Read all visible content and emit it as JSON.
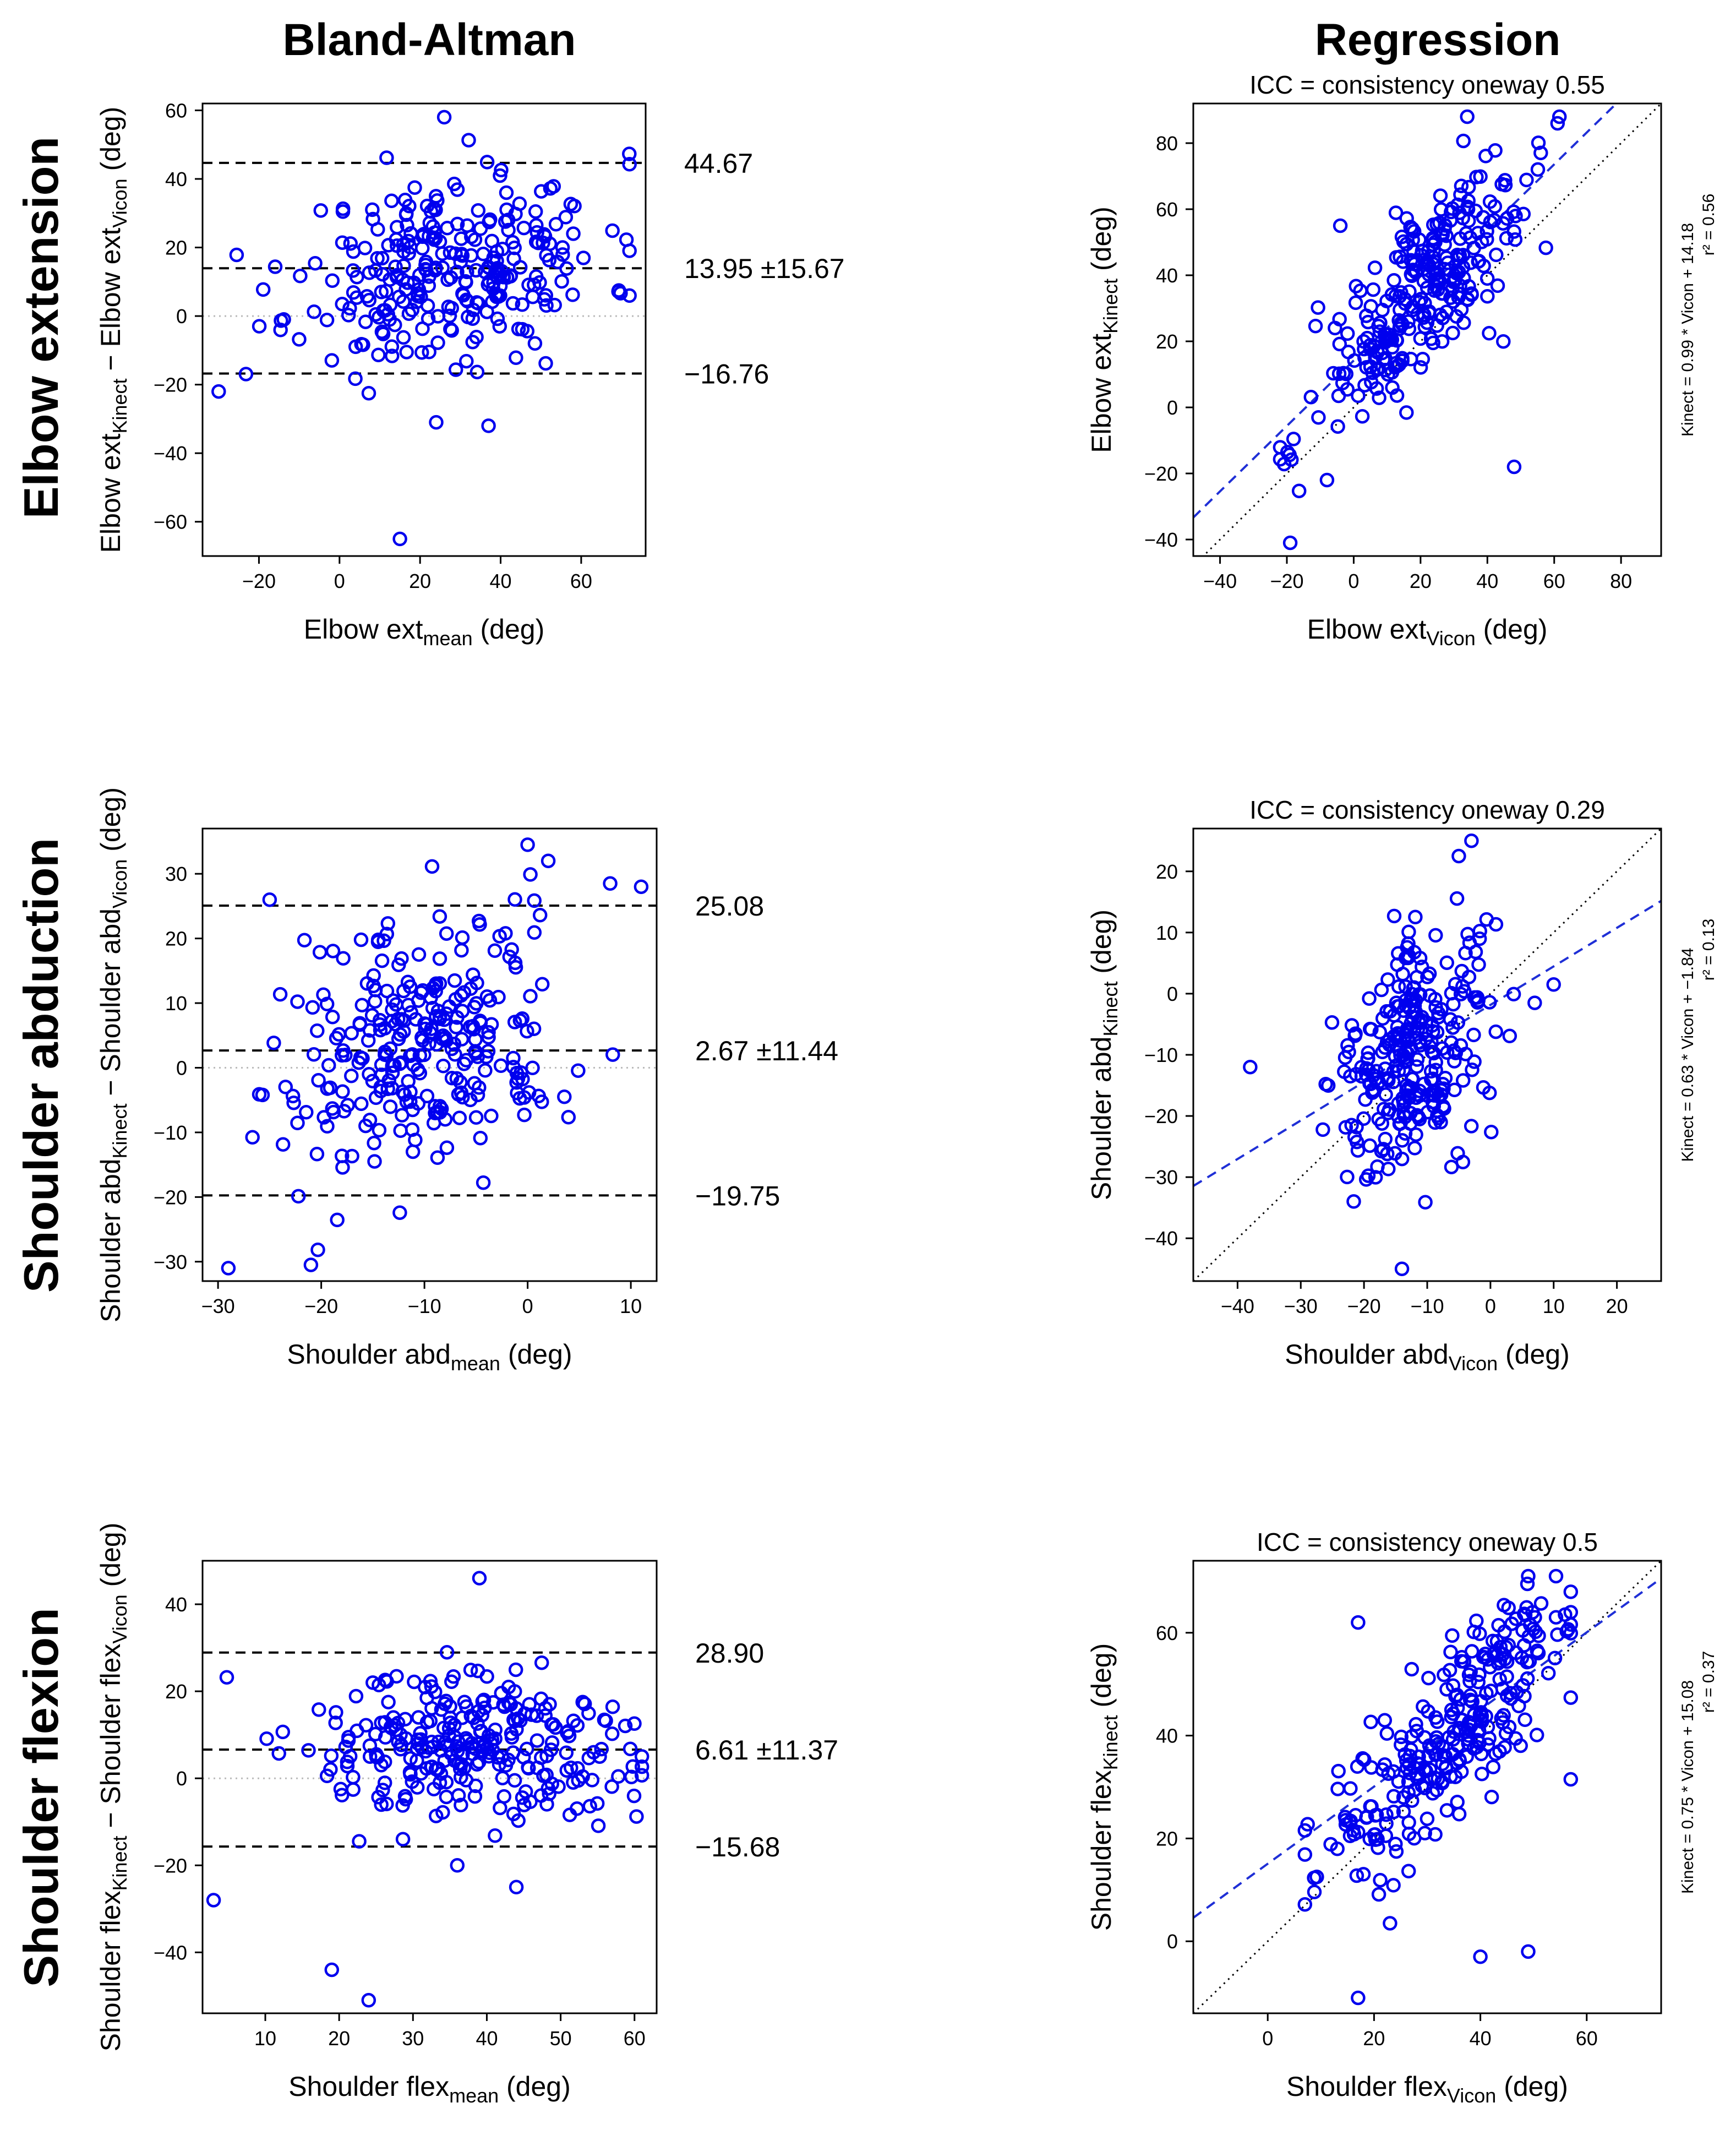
{
  "column_titles": {
    "left": "Bland-Altman",
    "right": "Regression"
  },
  "row_titles": [
    "Elbow extension",
    "Shoulder abduction",
    "Shoulder flexion"
  ],
  "colors": {
    "points": "#0000ee",
    "limits": "#000000",
    "fit_line": "#1f2fd6",
    "identity": "#000000",
    "zero_line": "#bbbbbb"
  },
  "chart_data": [
    {
      "type": "scatter",
      "kind": "bland-altman",
      "name": "elbow-ba",
      "xlabel": {
        "base": "Elbow ext",
        "sub": "mean",
        "unit": " (deg)"
      },
      "ylabel": {
        "pre": "Elbow ext",
        "sub1": "Kinect",
        "mid": " − Elbow ext",
        "sub2": "Vicon",
        "unit": " (deg)"
      },
      "xlim": [
        -34,
        76
      ],
      "ylim": [
        -70,
        62
      ],
      "xticks": [
        -20,
        0,
        20,
        40,
        60
      ],
      "yticks": [
        -60,
        -40,
        -20,
        0,
        20,
        40,
        60
      ],
      "lines": [
        {
          "y": 44.67,
          "label": "44.67"
        },
        {
          "y": 13.95,
          "label": "13.95 ±15.67"
        },
        {
          "y": -16.76,
          "label": "−16.76"
        }
      ],
      "n": 280,
      "seed": 11,
      "gen": {
        "xmean": 28,
        "xsd": 19,
        "xmin": -30,
        "xmax": 72,
        "slope": 0.15,
        "intercept": 9.7,
        "sd": 13.5,
        "ymin": -66,
        "ymax": 58
      },
      "extra_points": [
        [
          -30,
          -22
        ],
        [
          26,
          58
        ],
        [
          15,
          -65
        ],
        [
          37,
          -32
        ],
        [
          24,
          -31
        ]
      ]
    },
    {
      "type": "scatter",
      "kind": "regression",
      "name": "elbow-reg",
      "icc": "ICC = consistency oneway 0.55",
      "eq": "Kinect = 0.99 * Vicon + 14.18",
      "r2": "r² = 0.56",
      "xlabel": {
        "base": "Elbow ext",
        "sub": "Vicon",
        "unit": " (deg)"
      },
      "ylabel": {
        "base": "Elbow ext",
        "sub": "Kinect",
        "unit": " (deg)"
      },
      "xlim": [
        -48,
        92
      ],
      "ylim": [
        -45,
        92
      ],
      "xticks": [
        -40,
        -20,
        0,
        20,
        40,
        60,
        80
      ],
      "yticks": [
        -40,
        -20,
        0,
        20,
        40,
        60,
        80
      ],
      "fit": {
        "slope": 0.99,
        "intercept": 14.18
      },
      "n": 280,
      "seed": 21,
      "gen": {
        "xmean": 22,
        "xsd": 16,
        "xmin": -22,
        "xmax": 62,
        "slope": 0.99,
        "intercept": 14.18,
        "sd": 12.5,
        "ymin": -42,
        "ymax": 88
      },
      "extra_points": [
        [
          -19,
          -41
        ],
        [
          -8,
          -22
        ],
        [
          48,
          -18
        ],
        [
          61,
          86
        ],
        [
          -4,
          55
        ]
      ]
    },
    {
      "type": "scatter",
      "kind": "bland-altman",
      "name": "shoulder-abd-ba",
      "xlabel": {
        "base": "Shoulder abd",
        "sub": "mean",
        "unit": " (deg)"
      },
      "ylabel": {
        "pre": "Shoulder abd",
        "sub1": "Kinect",
        "mid": " − Shoulder abd",
        "sub2": "Vicon",
        "unit": " (deg)"
      },
      "xlim": [
        -31.5,
        12.5
      ],
      "ylim": [
        -33,
        37
      ],
      "xticks": [
        -30,
        -20,
        -10,
        0,
        10
      ],
      "yticks": [
        -30,
        -20,
        -10,
        0,
        10,
        20,
        30
      ],
      "lines": [
        {
          "y": 25.08,
          "label": "25.08"
        },
        {
          "y": 2.67,
          "label": "2.67 ±11.44"
        },
        {
          "y": -19.75,
          "label": "−19.75"
        }
      ],
      "n": 280,
      "seed": 31,
      "gen": {
        "xmean": -11,
        "xsd": 7,
        "xmin": -29,
        "xmax": 11,
        "slope": 0.35,
        "intercept": 6.5,
        "sd": 9.5,
        "ymin": -31,
        "ymax": 34
      },
      "extra_points": [
        [
          -29,
          -31
        ],
        [
          -21,
          -30.5
        ],
        [
          -25,
          26
        ],
        [
          0,
          34.5
        ],
        [
          11,
          28
        ],
        [
          8,
          28.5
        ],
        [
          2,
          32
        ]
      ]
    },
    {
      "type": "scatter",
      "kind": "regression",
      "name": "shoulder-abd-reg",
      "icc": "ICC = consistency oneway 0.29",
      "eq": "Kinect = 0.63 * Vicon + −1.84",
      "r2": "r² = 0.13",
      "xlabel": {
        "base": "Shoulder abd",
        "sub": "Vicon",
        "unit": " (deg)"
      },
      "ylabel": {
        "base": "Shoulder abd",
        "sub": "Kinect",
        "unit": " (deg)"
      },
      "xlim": [
        -47,
        27
      ],
      "ylim": [
        -47,
        27
      ],
      "xticks": [
        -40,
        -30,
        -20,
        -10,
        0,
        10,
        20
      ],
      "yticks": [
        -40,
        -30,
        -20,
        -10,
        0,
        10,
        20
      ],
      "fit": {
        "slope": 0.63,
        "intercept": -1.84
      },
      "n": 280,
      "seed": 41,
      "gen": {
        "xmean": -12,
        "xsd": 6,
        "xmin": -32,
        "xmax": 10,
        "slope": 0.63,
        "intercept": -1.84,
        "sd": 9,
        "ymin": -45,
        "ymax": 25
      },
      "extra_points": [
        [
          -38,
          -12
        ],
        [
          -14,
          -45
        ],
        [
          -3,
          25
        ],
        [
          -5,
          22.5
        ],
        [
          10,
          1.5
        ],
        [
          7,
          -1.5
        ]
      ]
    },
    {
      "type": "scatter",
      "kind": "bland-altman",
      "name": "shoulder-flex-ba",
      "xlabel": {
        "base": "Shoulder flex",
        "sub": "mean",
        "unit": " (deg)"
      },
      "ylabel": {
        "pre": "Shoulder flex",
        "sub1": "Kinect",
        "mid": " − Shoulder flex",
        "sub2": "Vicon",
        "unit": " (deg)"
      },
      "xlim": [
        1.5,
        63
      ],
      "ylim": [
        -54,
        50
      ],
      "xticks": [
        10,
        20,
        30,
        40,
        50,
        60
      ],
      "yticks": [
        -40,
        -20,
        0,
        20,
        40
      ],
      "lines": [
        {
          "y": 28.9,
          "label": "28.90"
        },
        {
          "y": 6.61,
          "label": "6.61 ±11.37"
        },
        {
          "y": -15.68,
          "label": "−15.68"
        }
      ],
      "n": 280,
      "seed": 51,
      "gen": {
        "xmean": 38,
        "xsd": 11,
        "xmin": 3,
        "xmax": 61,
        "slope": 0.0,
        "intercept": 6.6,
        "sd": 8.5,
        "ymin": -52,
        "ymax": 46
      },
      "extra_points": [
        [
          3,
          -28
        ],
        [
          19,
          -44
        ],
        [
          24,
          -51
        ],
        [
          39,
          46
        ],
        [
          36,
          -20
        ],
        [
          44,
          -25
        ]
      ]
    },
    {
      "type": "scatter",
      "kind": "regression",
      "name": "shoulder-flex-reg",
      "icc": "ICC = consistency oneway 0.5",
      "eq": "Kinect = 0.75 * Vicon + 15.08",
      "r2": "r² = 0.37",
      "xlabel": {
        "base": "Shoulder flex",
        "sub": "Vicon",
        "unit": " (deg)"
      },
      "ylabel": {
        "base": "Shoulder flex",
        "sub": "Kinect",
        "unit": " (deg)"
      },
      "xlim": [
        -14,
        74
      ],
      "ylim": [
        -14,
        74
      ],
      "xticks": [
        0,
        20,
        40,
        60
      ],
      "yticks": [
        0,
        20,
        40,
        60
      ],
      "fit": {
        "slope": 0.75,
        "intercept": 15.08
      },
      "n": 280,
      "seed": 61,
      "gen": {
        "xmean": 34,
        "xsd": 12,
        "xmin": 7,
        "xmax": 57,
        "slope": 1.0,
        "intercept": 6,
        "sd": 8,
        "ymin": -11,
        "ymax": 71
      },
      "extra_points": [
        [
          17,
          -11
        ],
        [
          17,
          62
        ],
        [
          40,
          -3
        ],
        [
          49,
          -2
        ],
        [
          23,
          3.5
        ],
        [
          49,
          71
        ],
        [
          57,
          31.5
        ]
      ]
    }
  ]
}
